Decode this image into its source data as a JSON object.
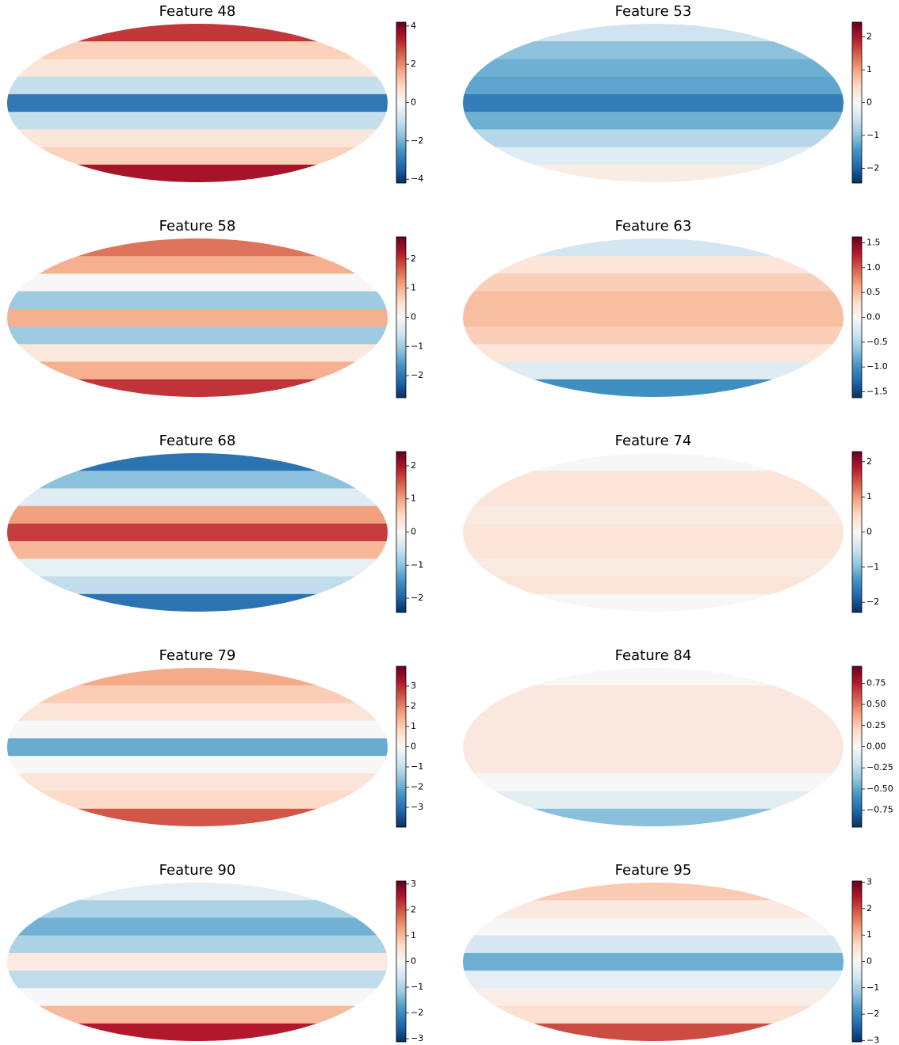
{
  "chart_data": [
    {
      "type": "map",
      "title": "Feature 48",
      "clim": [
        -4.2,
        4.2
      ],
      "cticks": [
        {
          "value": -4,
          "label": "−4"
        },
        {
          "value": -2,
          "label": "−2"
        },
        0,
        2,
        4
      ],
      "bands": [
        3,
        1,
        0.5,
        -1,
        -3,
        -1,
        0.5,
        1,
        3.5
      ]
    },
    {
      "type": "map",
      "title": "Feature 53",
      "clim": [
        -2.45,
        2.45
      ],
      "cticks": [
        {
          "value": -2,
          "label": "−2"
        },
        {
          "value": -1,
          "label": "−1"
        },
        0,
        1,
        2
      ],
      "bands": [
        -0.5,
        -1,
        -1.2,
        -1.3,
        -1.7,
        -1.2,
        -0.7,
        -0.3,
        0.2
      ]
    },
    {
      "type": "map",
      "title": "Feature 58",
      "clim": [
        -2.76,
        2.76
      ],
      "cticks": [
        {
          "value": -2,
          "label": "−2"
        },
        {
          "value": -1,
          "label": "−1"
        },
        0,
        1,
        2
      ],
      "bands": [
        1.5,
        1,
        0,
        -1,
        1,
        -1,
        0.3,
        1,
        2
      ]
    },
    {
      "type": "map",
      "title": "Feature 63",
      "clim": [
        -1.62,
        1.62
      ],
      "cticks": [
        {
          "value": -1.5,
          "label": "−1.5"
        },
        {
          "value": -1,
          "label": "−1.0"
        },
        {
          "value": -0.5,
          "label": "−0.5"
        },
        {
          "value": 0,
          "label": "0.0"
        },
        0.5,
        {
          "value": 1,
          "label": "1.0"
        },
        1.5
      ],
      "bands": [
        -0.3,
        0.2,
        0.4,
        0.5,
        0.5,
        0.4,
        0.2,
        -0.2,
        -1
      ]
    },
    {
      "type": "map",
      "title": "Feature 68",
      "clim": [
        -2.43,
        2.43
      ],
      "cticks": [
        {
          "value": -2,
          "label": "−2"
        },
        {
          "value": -1,
          "label": "−1"
        },
        0,
        1,
        2
      ],
      "bands": [
        -1.8,
        -1,
        -0.3,
        1,
        1.7,
        0.8,
        -0.2,
        -0.6,
        -1.8
      ]
    },
    {
      "type": "map",
      "title": "Feature 74",
      "clim": [
        -2.29,
        2.29
      ],
      "cticks": [
        {
          "value": -2,
          "label": "−2"
        },
        {
          "value": -1,
          "label": "−1"
        },
        0,
        1,
        2
      ],
      "bands": [
        0,
        0.3,
        0.3,
        0.2,
        0.3,
        0.3,
        0.2,
        0.3,
        0
      ]
    },
    {
      "type": "map",
      "title": "Feature 79",
      "clim": [
        -3.98,
        3.98
      ],
      "cticks": [
        {
          "value": -3,
          "label": "−3"
        },
        {
          "value": -2,
          "label": "−2"
        },
        {
          "value": -1,
          "label": "−1"
        },
        0,
        1,
        2,
        3
      ],
      "bands": [
        1.5,
        1,
        0.5,
        0,
        -2,
        0,
        0.5,
        0.8,
        2.5
      ]
    },
    {
      "type": "map",
      "title": "Feature 84",
      "clim": [
        -0.95,
        0.95
      ],
      "cticks": [
        {
          "value": -0.75,
          "label": "−0.75"
        },
        {
          "value": -0.5,
          "label": "−0.50"
        },
        {
          "value": -0.25,
          "label": "−0.25"
        },
        {
          "value": 0,
          "label": "0.00"
        },
        0.25,
        {
          "value": 0.5,
          "label": "0.50"
        },
        0.75
      ],
      "bands": [
        0,
        0.1,
        0.1,
        0.1,
        0.1,
        0.1,
        0,
        -0.1,
        -0.4
      ]
    },
    {
      "type": "map",
      "title": "Feature 90",
      "clim": [
        -3.12,
        3.12
      ],
      "cticks": [
        {
          "value": -3,
          "label": "−3"
        },
        {
          "value": -2,
          "label": "−2"
        },
        {
          "value": -1,
          "label": "−1"
        },
        0,
        1,
        2,
        3
      ],
      "bands": [
        -0.3,
        -1,
        -1.5,
        -1,
        0.3,
        -0.8,
        0,
        1,
        2.5
      ]
    },
    {
      "type": "map",
      "title": "Feature 95",
      "clim": [
        -3.05,
        3.05
      ],
      "cticks": [
        {
          "value": -3,
          "label": "−3"
        },
        {
          "value": -2,
          "label": "−2"
        },
        {
          "value": -1,
          "label": "−1"
        },
        0,
        1,
        2,
        3
      ],
      "bands": [
        0.8,
        0.3,
        0,
        -0.5,
        -1.5,
        -0.3,
        0.2,
        0.5,
        2
      ]
    }
  ]
}
